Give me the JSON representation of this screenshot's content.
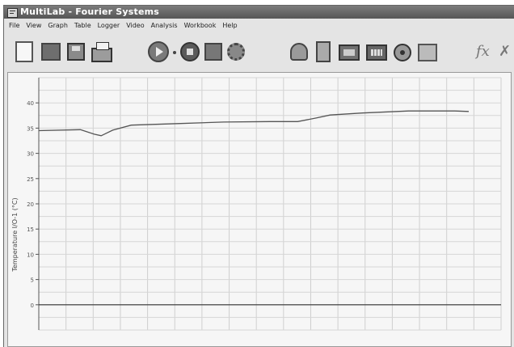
{
  "window": {
    "title": "MultiLab - Fourier Systems"
  },
  "menu": {
    "items": [
      "File",
      "View",
      "Graph",
      "Table",
      "Logger",
      "Video",
      "Analysis",
      "Workbook",
      "Help"
    ]
  },
  "toolbar": {
    "buttons": [
      {
        "name": "new-icon"
      },
      {
        "name": "open-folder-icon"
      },
      {
        "name": "save-disk-icon"
      },
      {
        "name": "print-icon"
      },
      {
        "name": "run-icon"
      },
      {
        "name": "stop-icon"
      },
      {
        "name": "logbook-icon"
      },
      {
        "name": "gear-icon"
      },
      {
        "name": "meter-icon"
      },
      {
        "name": "thermometer-icon"
      },
      {
        "name": "graph-view-icon"
      },
      {
        "name": "table-view-icon"
      },
      {
        "name": "target-icon"
      },
      {
        "name": "picture-icon"
      },
      {
        "name": "function-icon"
      },
      {
        "name": "close-icon"
      }
    ],
    "fx_label": "fx",
    "x_label": "✗"
  },
  "chart_data": {
    "type": "line",
    "ylabel": "Temperature I/O-1 (°C)",
    "xlabel": "",
    "ylim": [
      -5,
      45
    ],
    "xlim": [
      0,
      1
    ],
    "grid": true,
    "y_ticks": [
      0,
      5,
      10,
      15,
      20,
      25,
      30,
      35,
      40
    ],
    "series": [
      {
        "color": "#555555",
        "x": [
          0,
          0.09,
          0.12,
          0.135,
          0.16,
          0.2,
          0.3,
          0.4,
          0.5,
          0.56,
          0.6,
          0.63,
          0.7,
          0.8,
          0.9,
          0.93
        ],
        "y": [
          34.5,
          34.7,
          33.8,
          33.5,
          34.6,
          35.6,
          35.9,
          36.2,
          36.3,
          36.3,
          37.0,
          37.6,
          38.0,
          38.4,
          38.4,
          38.3
        ]
      }
    ]
  }
}
